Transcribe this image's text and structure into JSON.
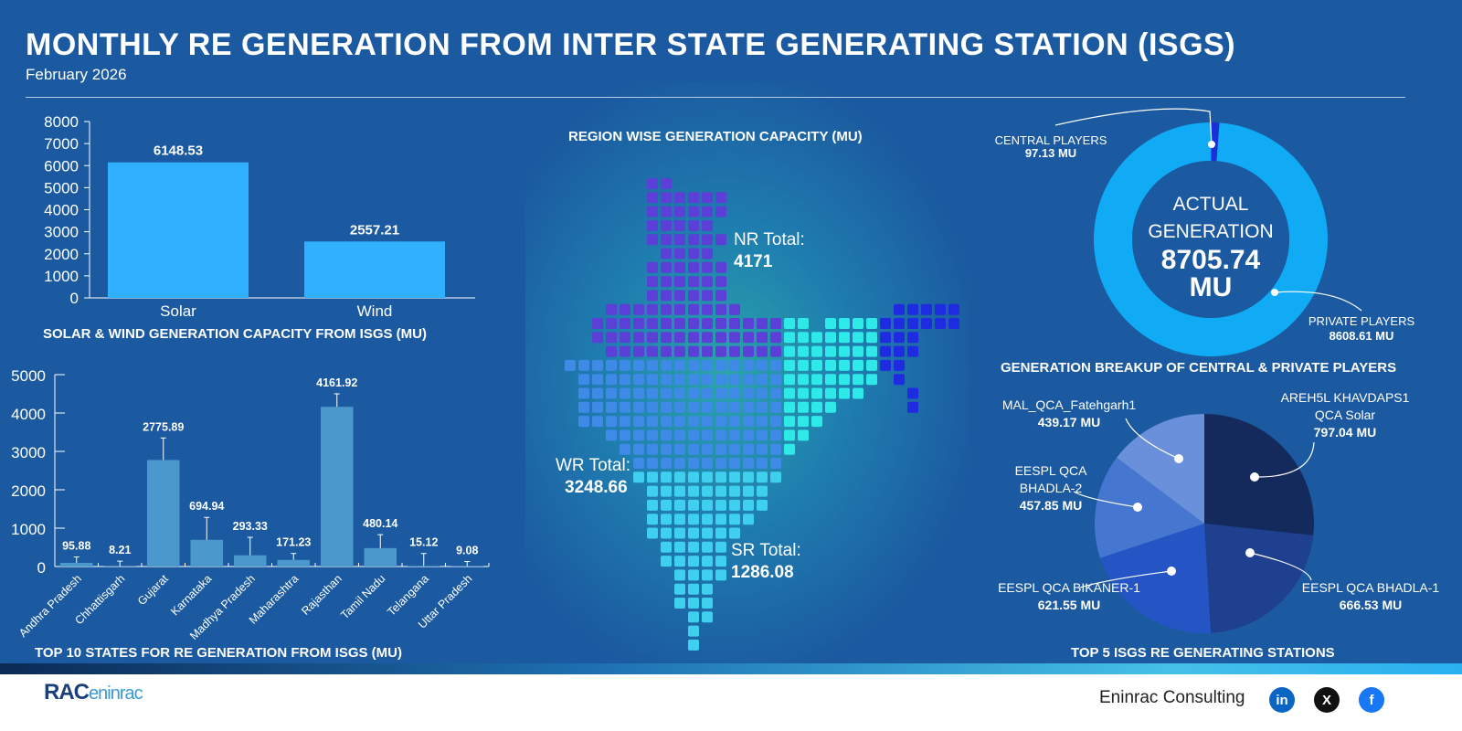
{
  "header": {
    "title": "MONTHLY RE GENERATION FROM INTER STATE GENERATING STATION (ISGS)",
    "subtitle": "February 2026"
  },
  "colors": {
    "background": "#1b5aa0",
    "solar_wind_bar": "#30b0ff",
    "state_bar": "#4a98cc",
    "donut_private": "#10aaf5",
    "donut_central": "#1a2fd8",
    "nr": "#5b3fd6",
    "wr": "#3f8ae6",
    "sr": "#3fd0f0",
    "er": "#2fe8e8",
    "ne": "#1e2be0"
  },
  "chart_data": [
    {
      "type": "bar",
      "title": "SOLAR & WIND GENERATION CAPACITY FROM ISGS (MU)",
      "categories": [
        "Solar",
        "Wind"
      ],
      "values": [
        6148.53,
        2557.21
      ],
      "value_labels": [
        "6148.53",
        "2557.21"
      ],
      "ylim": [
        0,
        8000
      ],
      "yticks": [
        "0",
        "1000",
        "2000",
        "3000",
        "4000",
        "5000",
        "6000",
        "7000",
        "8000"
      ]
    },
    {
      "type": "bar",
      "title": "TOP 10 STATES FOR RE GENERATION FROM ISGS (MU)",
      "categories": [
        "Andhra Pradesh",
        "Chhattisgarh",
        "Gujarat",
        "Karnataka",
        "Madhya Pradesh",
        "Maharashtra",
        "Rajasthan",
        "Tamil Nadu",
        "Telangana",
        "Uttar Pradesh"
      ],
      "values": [
        95.88,
        8.21,
        2775.89,
        694.94,
        293.33,
        171.23,
        4161.92,
        480.14,
        15.12,
        9.08
      ],
      "value_labels": [
        "95.88",
        "8.21",
        "2775.89",
        "694.94",
        "293.33",
        "171.23",
        "4161.92",
        "480.14",
        "15.12",
        "9.08"
      ],
      "error_top": [
        250,
        140,
        3350,
        1280,
        760,
        340,
        4500,
        830,
        340,
        130
      ],
      "ylim": [
        0,
        5000
      ],
      "yticks": [
        "0",
        "1000",
        "2000",
        "3000",
        "4000",
        "5000"
      ]
    },
    {
      "type": "map",
      "title": "REGION WISE GENERATION CAPACITY (MU)",
      "regions": [
        {
          "label": "NR Total:",
          "value": "4171"
        },
        {
          "label": "WR Total:",
          "value": "3248.66"
        },
        {
          "label": "SR Total:",
          "value": "1286.08"
        }
      ]
    },
    {
      "type": "pie",
      "variant": "donut",
      "center_lines": [
        "ACTUAL",
        "GENERATION",
        "8705.74",
        "MU"
      ],
      "slices": [
        {
          "name": "CENTRAL PLAYERS",
          "value": 97.13,
          "label": "97.13 MU"
        },
        {
          "name": "PRIVATE PLAYERS",
          "value": 8608.61,
          "label": "8608.61 MU"
        }
      ],
      "title": "GENERATION BREAKUP OF CENTRAL & PRIVATE PLAYERS"
    },
    {
      "type": "pie",
      "title": "TOP 5 ISGS RE GENERATING STATIONS",
      "slices": [
        {
          "name": [
            "AREH5L KHAVDAPS1",
            "QCA Solar"
          ],
          "value": 797.04,
          "label": "797.04 MU",
          "color": "#152a5c"
        },
        {
          "name": [
            "EESPL QCA BHADLA-1"
          ],
          "value": 666.53,
          "label": "666.53 MU",
          "color": "#1f3f8f"
        },
        {
          "name": [
            "EESPL QCA BIKANER-1"
          ],
          "value": 621.55,
          "label": "621.55 MU",
          "color": "#2555c4"
        },
        {
          "name": [
            "EESPL QCA",
            "BHADLA-2"
          ],
          "value": 457.85,
          "label": "457.85 MU",
          "color": "#4677d0"
        },
        {
          "name": [
            "MAL_QCA_Fatehgarh1"
          ],
          "value": 439.17,
          "label": "439.17 MU",
          "color": "#6a90dc"
        }
      ]
    }
  ],
  "footer": {
    "company": "Eninrac Consulting",
    "logo_text": "RAC eninrac",
    "social": [
      {
        "name": "linkedin",
        "glyph": "in",
        "color": "#0a66c2"
      },
      {
        "name": "x",
        "glyph": "X",
        "color": "#111111"
      },
      {
        "name": "facebook",
        "glyph": "f",
        "color": "#1877f2"
      }
    ]
  }
}
